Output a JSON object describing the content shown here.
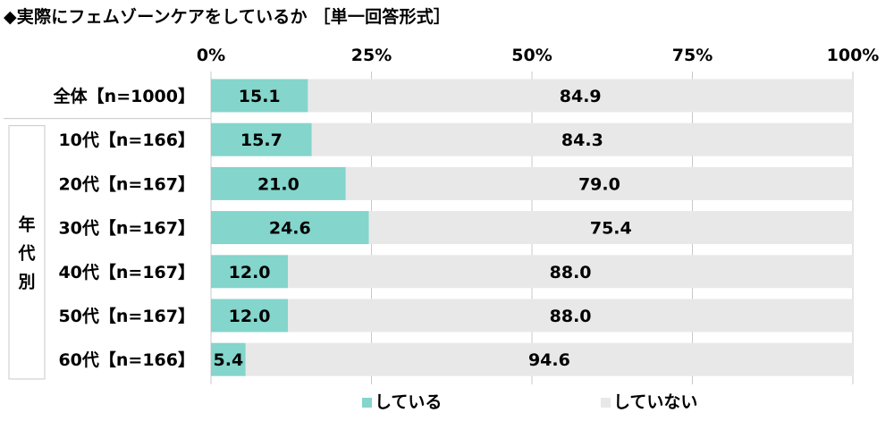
{
  "title": "◆実際にフェムゾーンケアをしているか ［単一回答形式］",
  "chart_data": {
    "type": "bar",
    "orientation": "horizontal",
    "stacked": true,
    "percent_axis": true,
    "xlim": [
      0,
      100
    ],
    "ticks": [
      "0%",
      "25%",
      "50%",
      "75%",
      "100%"
    ],
    "tick_values": [
      0,
      25,
      50,
      75,
      100
    ],
    "categories": [
      "全体【n=1000】",
      "10代【n=166】",
      "20代【n=167】",
      "30代【n=167】",
      "40代【n=167】",
      "50代【n=167】",
      "60代【n=166】"
    ],
    "group_label": "年代別",
    "grouped_categories": [
      "10代【n=166】",
      "20代【n=167】",
      "30代【n=167】",
      "40代【n=167】",
      "50代【n=167】",
      "60代【n=166】"
    ],
    "series": [
      {
        "name": "している",
        "color": "#84d5cc",
        "values": [
          15.1,
          15.7,
          21.0,
          24.6,
          12.0,
          12.0,
          5.4
        ],
        "labels": [
          "15.1",
          "15.7",
          "21.0",
          "24.6",
          "12.0",
          "12.0",
          "5.4"
        ]
      },
      {
        "name": "していない",
        "color": "#e8e8e8",
        "values": [
          84.9,
          84.3,
          79.0,
          75.4,
          88.0,
          88.0,
          94.6
        ],
        "labels": [
          "84.9",
          "84.3",
          "79.0",
          "75.4",
          "88.0",
          "88.0",
          "94.6"
        ]
      }
    ],
    "legend_position": "bottom",
    "grid": true
  }
}
